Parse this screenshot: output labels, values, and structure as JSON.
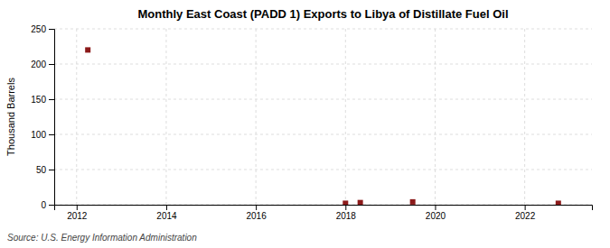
{
  "chart_data": {
    "type": "scatter",
    "title": "Monthly East Coast (PADD 1) Exports to Libya of Distillate Fuel Oil",
    "ylabel": "Thousand Barrels",
    "annotations": [
      "Source: U.S. Energy Information Administration"
    ],
    "x": [
      2012.25,
      2018.0,
      2018.33,
      2019.5,
      2022.75
    ],
    "values": [
      220,
      2,
      3,
      4,
      2
    ],
    "color": "#8b1a1a",
    "marker": "square",
    "xlim": [
      2011.5,
      2023.5
    ],
    "xticks": [
      2012,
      2014,
      2016,
      2018,
      2020,
      2022
    ],
    "ylim": [
      0,
      250
    ],
    "yticks": [
      0,
      50,
      100,
      150,
      200,
      250
    ],
    "grid": true
  }
}
